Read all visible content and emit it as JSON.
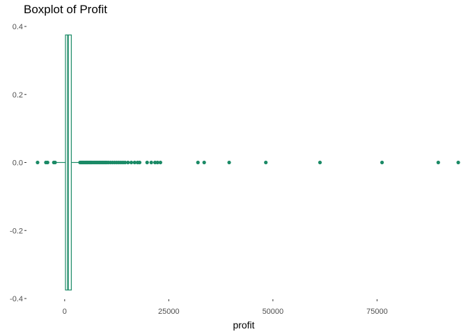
{
  "chart_data": {
    "type": "boxplot",
    "title": "Boxplot of Profit",
    "xlabel": "profit",
    "ylabel": "",
    "xlim": [
      -9000,
      95500
    ],
    "ylim": [
      -0.4,
      0.4
    ],
    "x_ticks": [
      {
        "value": 0,
        "label": "0"
      },
      {
        "value": 25000,
        "label": "25000"
      },
      {
        "value": 50000,
        "label": "50000"
      },
      {
        "value": 75000,
        "label": "75000"
      }
    ],
    "y_ticks": [
      {
        "value": 0.4,
        "label": "0.4"
      },
      {
        "value": 0.2,
        "label": "0.2"
      },
      {
        "value": 0.0,
        "label": "0.0"
      },
      {
        "value": -0.2,
        "label": "-0.2"
      },
      {
        "value": -0.4,
        "label": "-0.4"
      }
    ],
    "color": "#1b8a66",
    "grid": false,
    "box": {
      "y_center": 0.0,
      "half_height": 0.375,
      "q1": 200,
      "median": 800,
      "q3": 1600,
      "whisker_low": -1900,
      "whisker_high": 3700
    },
    "outliers": [
      -6500,
      -4500,
      -4100,
      -2600,
      -2300,
      3700,
      3900,
      4100,
      4300,
      4500,
      4700,
      4900,
      5100,
      5300,
      5500,
      5700,
      5900,
      6100,
      6300,
      6500,
      6800,
      7100,
      7400,
      7700,
      8000,
      8300,
      8600,
      8900,
      9200,
      9500,
      9800,
      10100,
      10500,
      11000,
      11500,
      12000,
      12500,
      13000,
      13500,
      14000,
      14500,
      15200,
      16000,
      16800,
      17500,
      18000,
      19800,
      20800,
      21700,
      22300,
      23000,
      32000,
      33500,
      39500,
      48300,
      61300,
      76200,
      89700,
      94500
    ]
  }
}
